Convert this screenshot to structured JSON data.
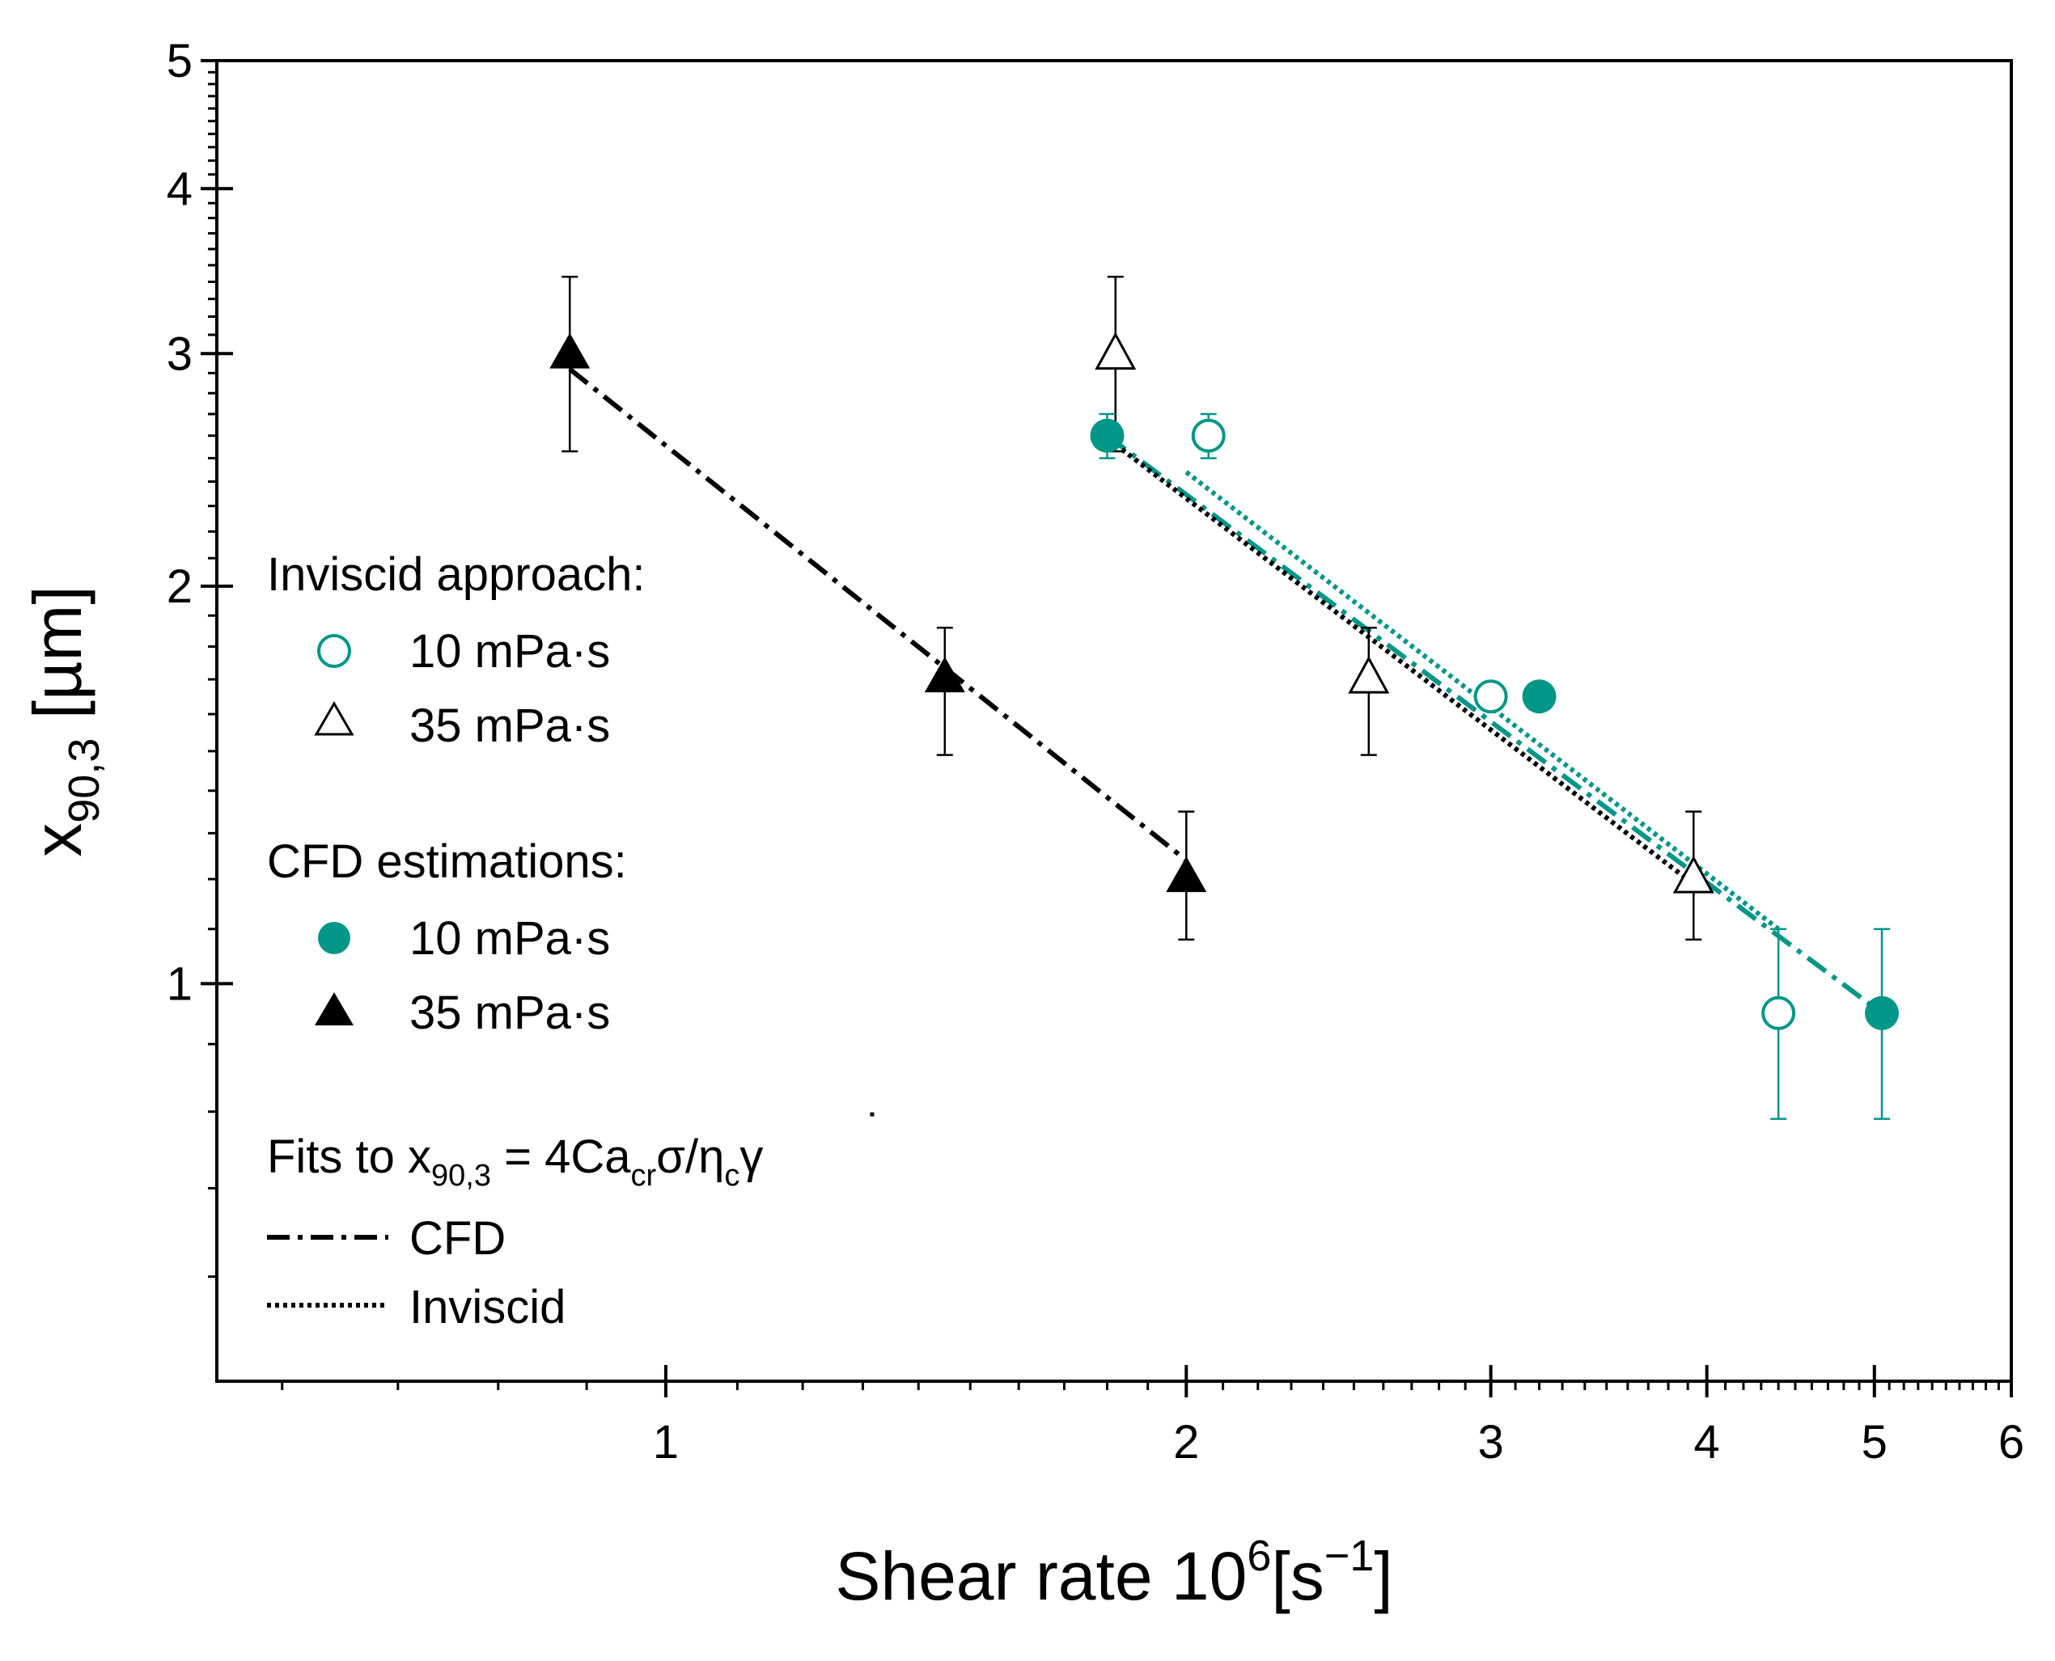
{
  "chart_data": {
    "type": "scatter",
    "x_scale": "log",
    "y_scale": "log",
    "xlim": [
      0.55,
      6
    ],
    "ylim": [
      0.5,
      5
    ],
    "x_ticks": [
      1,
      2,
      3,
      4,
      5,
      6
    ],
    "x_tick_labels": [
      "1",
      "2",
      "3",
      "4",
      "5",
      "6"
    ],
    "y_ticks": [
      1,
      2,
      3,
      4,
      5
    ],
    "y_tick_labels": [
      "1",
      "2",
      "3",
      "4",
      "5"
    ],
    "xlabel": {
      "main": "Shear rate 10",
      "sup1": "6",
      "mid": "[s",
      "sup2": "−1",
      "end": "]"
    },
    "ylabel": {
      "main": "x",
      "sub": "90,3",
      "end": " [µm]"
    },
    "colors": {
      "teal": "#009688",
      "black": "#000000"
    },
    "series": [
      {
        "name": "Inviscid 10 mPa·s",
        "group": "Inviscid approach",
        "marker": "circle-open",
        "color": "#009688",
        "points": [
          {
            "x": 2.06,
            "y": 2.6,
            "err_low": 0.1,
            "err_high": 0.1
          },
          {
            "x": 3.0,
            "y": 1.65
          },
          {
            "x": 4.4,
            "y": 0.95,
            "err_low": 0.16,
            "err_high": 0.15
          }
        ]
      },
      {
        "name": "Inviscid 35 mPa·s",
        "group": "Inviscid approach",
        "marker": "triangle-open",
        "color": "#000000",
        "points": [
          {
            "x": 1.82,
            "y": 2.99,
            "err_low": 0.46,
            "err_high": 0.44
          },
          {
            "x": 2.55,
            "y": 1.7,
            "err_low": 0.21,
            "err_high": 0.16
          },
          {
            "x": 3.93,
            "y": 1.2,
            "err_low": 0.12,
            "err_high": 0.15
          }
        ]
      },
      {
        "name": "CFD 10 mPa·s",
        "group": "CFD estimations",
        "marker": "circle-filled",
        "color": "#009688",
        "points": [
          {
            "x": 1.8,
            "y": 2.6,
            "err_low": 0.1,
            "err_high": 0.1
          },
          {
            "x": 3.2,
            "y": 1.65
          },
          {
            "x": 5.05,
            "y": 0.95,
            "err_low": 0.16,
            "err_high": 0.15
          }
        ]
      },
      {
        "name": "CFD 35 mPa·s",
        "group": "CFD estimations",
        "marker": "triangle-filled",
        "color": "#000000",
        "points": [
          {
            "x": 0.88,
            "y": 2.99,
            "err_low": 0.46,
            "err_high": 0.44
          },
          {
            "x": 1.45,
            "y": 1.7,
            "err_low": 0.21,
            "err_high": 0.16
          },
          {
            "x": 2.0,
            "y": 1.2,
            "err_low": 0.12,
            "err_high": 0.15
          }
        ]
      }
    ],
    "fits": [
      {
        "name": "CFD fit 35 mPa·s",
        "style": "dashdot",
        "color": "#000000",
        "x": [
          0.88,
          2.0
        ],
        "y": [
          2.92,
          1.24
        ]
      },
      {
        "name": "CFD fit 10 mPa·s",
        "style": "dashdot",
        "color": "#009688",
        "x": [
          1.8,
          5.05
        ],
        "y": [
          2.6,
          0.95
        ]
      },
      {
        "name": "Inviscid fit 10 mPa·s",
        "style": "dotted",
        "color": "#009688",
        "x": [
          2.0,
          4.4
        ],
        "y": [
          2.44,
          1.1
        ]
      },
      {
        "name": "Inviscid fit 35 mPa·s",
        "style": "dotted",
        "color": "#000000",
        "x": [
          1.82,
          3.93
        ],
        "y": [
          2.56,
          1.19
        ]
      }
    ],
    "legend": {
      "inviscid_heading": "Inviscid approach:",
      "inviscid_10": "10 mPa·s",
      "inviscid_35": "35 mPa·s",
      "cfd_heading": "CFD estimations:",
      "cfd_10": "10 mPa·s",
      "cfd_35": "35 mPa·s",
      "fits_heading": {
        "t1": "Fits to x",
        "s1": "90,3",
        "t2": " = 4Ca",
        "s2": "cr",
        "t3": "σ/η",
        "s3": "c",
        "t4": "γ",
        "dot": "˙"
      },
      "fit_cfd": "CFD",
      "fit_inviscid": "Inviscid"
    }
  }
}
